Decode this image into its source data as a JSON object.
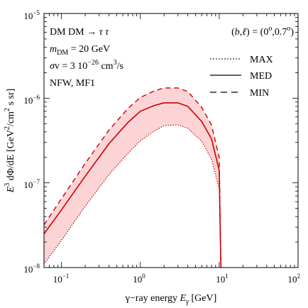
{
  "chart_data": {
    "type": "line",
    "title": "",
    "xlabel": "γ−ray energy E_γ [GeV]",
    "ylabel": "E^3 dΦ/dE [GeV^2/cm^2 s sr]",
    "xscale": "log",
    "yscale": "log",
    "xlim": [
      0.06,
      100
    ],
    "ylim": [
      1e-08,
      1e-05
    ],
    "grid": false,
    "x_tick_labels": [
      "10^-1",
      "10^0",
      "10^1",
      "10^2"
    ],
    "y_tick_labels": [
      "10^-8",
      "10^-7",
      "10^-6",
      "10^-5"
    ],
    "annotations": {
      "line1": "DM DM → τ τ",
      "line2": "m_DM = 20 GeV",
      "line3": "σv = 3  10^-26 cm^3/s",
      "line4": "NFW, MF1",
      "coords": "(b,ℓ) = (0°,0.7°)"
    },
    "legend_placement": "top-right",
    "shaded_band": "between MAX and MIN",
    "colors": {
      "curves": "#cc0000",
      "band": "#fcd4d6",
      "legend": "#000000"
    },
    "series": [
      {
        "name": "MAX",
        "style": "dotted",
        "x": [
          0.06,
          0.1,
          0.2,
          0.4,
          0.7,
          1.0,
          1.5,
          2.0,
          3.0,
          4.0,
          6.0,
          8.0,
          10.0,
          10.5
        ],
        "y": [
          1.1e-08,
          2.1e-08,
          5.3e-08,
          1.25e-07,
          2.25e-07,
          3.15e-07,
          4.1e-07,
          4.75e-07,
          4.85e-07,
          4.4e-07,
          3.1e-07,
          1.9e-07,
          8.5e-08,
          1e-08
        ]
      },
      {
        "name": "MED",
        "style": "solid",
        "x": [
          0.06,
          0.1,
          0.2,
          0.4,
          0.7,
          1.0,
          1.5,
          2.0,
          3.0,
          4.0,
          6.0,
          8.0,
          10.0,
          10.5
        ],
        "y": [
          2.5e-08,
          4.8e-08,
          1.2e-07,
          2.9e-07,
          5.2e-07,
          7e-07,
          8.2e-07,
          8.8e-07,
          8.8e-07,
          8e-07,
          5.3e-07,
          3.3e-07,
          1.4e-07,
          1e-08
        ]
      },
      {
        "name": "MIN",
        "style": "dashed",
        "x": [
          0.06,
          0.1,
          0.2,
          0.4,
          0.7,
          1.0,
          1.5,
          2.0,
          3.0,
          4.0,
          6.0,
          8.0,
          10.0,
          10.5
        ],
        "y": [
          3.2e-08,
          6.5e-08,
          1.7e-07,
          4.2e-07,
          7.6e-07,
          1.02e-06,
          1.22e-06,
          1.32e-06,
          1.32e-06,
          1.2e-06,
          7.8e-07,
          4.8e-07,
          2e-07,
          1e-08
        ]
      }
    ]
  }
}
